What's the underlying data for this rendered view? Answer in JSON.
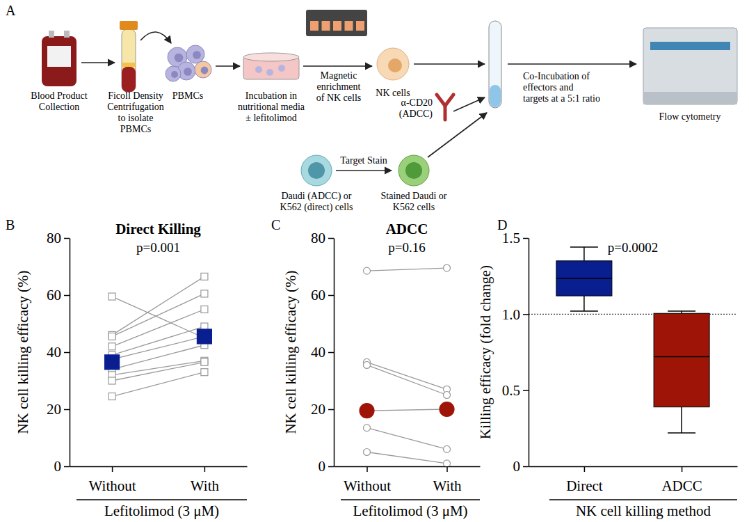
{
  "diagram": {
    "label": "A",
    "nodes": [
      {
        "label": [
          "Blood Product",
          "Collection"
        ]
      },
      {
        "label": [
          "Ficoll Density",
          "Centrifugation",
          "to isolate",
          "PBMCs"
        ]
      },
      {
        "label": [
          "PBMCs"
        ]
      },
      {
        "label": [
          "Incubation in",
          "nutritional media",
          "± lefitolimod"
        ]
      },
      {
        "label": [
          "Magnetic",
          "enrichment",
          "of NK cells"
        ]
      },
      {
        "label": [
          "NK cells"
        ]
      },
      {
        "label": [
          "α-CD20",
          "(ADCC)"
        ]
      },
      {
        "label": [
          "Daudi (ADCC) or",
          "K562 (direct) cells"
        ]
      },
      {
        "label": [
          "Target Stain"
        ]
      },
      {
        "label": [
          "Stained Daudi or",
          "K562 cells"
        ]
      },
      {
        "label": [
          "Co-Incubation of",
          "effectors and",
          "targets at a 5:1 ratio"
        ]
      },
      {
        "label": [
          "Flow cytometry"
        ]
      }
    ]
  },
  "chart_data": [
    {
      "type": "paired",
      "label": "B",
      "title": "Direct Killing",
      "subtitle": "p=0.001",
      "ylabel": "NK cell killing efficacy (%)",
      "xlabel": "Lefitolimod (3 μM)",
      "categories": [
        "Without",
        "With"
      ],
      "ylim": [
        0,
        80
      ],
      "yticks": [
        0,
        20,
        40,
        60,
        80
      ],
      "color": "#9a9a9a",
      "marker": "square",
      "donors": [
        {
          "values": [
            59.5,
            45
          ]
        },
        {
          "values": [
            46,
            66.5
          ]
        },
        {
          "values": [
            45.5,
            60.5
          ]
        },
        {
          "values": [
            42,
            55
          ]
        },
        {
          "values": [
            39,
            49
          ]
        },
        {
          "values": [
            37.5,
            45.5
          ]
        },
        {
          "values": [
            34,
            42.5
          ]
        },
        {
          "values": [
            32,
            37
          ]
        },
        {
          "values": [
            30,
            36.5
          ]
        },
        {
          "values": [
            24.5,
            33
          ]
        }
      ],
      "summary": {
        "values": [
          36.5,
          45.5
        ],
        "color": "#0a1f8f",
        "marker": "square"
      }
    },
    {
      "type": "paired",
      "label": "C",
      "title": "ADCC",
      "subtitle": "p=0.16",
      "ylabel": "NK cell killing efficacy (%)",
      "xlabel": "Lefitolimod (3 μM)",
      "categories": [
        "Without",
        "With"
      ],
      "ylim": [
        0,
        80
      ],
      "yticks": [
        0,
        20,
        40,
        60,
        80
      ],
      "color": "#9a9a9a",
      "marker": "circle",
      "donors": [
        {
          "values": [
            68.5,
            69.5
          ]
        },
        {
          "values": [
            36.5,
            27
          ]
        },
        {
          "values": [
            35.5,
            25
          ]
        },
        {
          "values": [
            19.5,
            20
          ]
        },
        {
          "values": [
            13.5,
            6
          ]
        },
        {
          "values": [
            5,
            1
          ]
        }
      ],
      "summary": {
        "values": [
          19.5,
          20
        ],
        "color": "#9e1508",
        "marker": "circle"
      }
    },
    {
      "type": "box",
      "label": "D",
      "title": "p=0.0002",
      "ylabel": "Killing efficacy (fold change)",
      "xlabel": "NK cell killing method",
      "categories": [
        "Direct",
        "ADCC"
      ],
      "colors": [
        "#0a1f8f",
        "#9e1508"
      ],
      "ylim": [
        0,
        1.5
      ],
      "yticks": [
        0,
        0.5,
        {
          "value": 1,
          "label": "1.0"
        },
        1.5
      ],
      "reference_line": 1,
      "stats": {
        "low": [
          1.02,
          0.22
        ],
        "q1": [
          1.12,
          0.39
        ],
        "median": [
          1.235,
          0.72
        ],
        "q3": [
          1.35,
          1.005
        ],
        "high": [
          1.44,
          1.02
        ]
      }
    }
  ]
}
